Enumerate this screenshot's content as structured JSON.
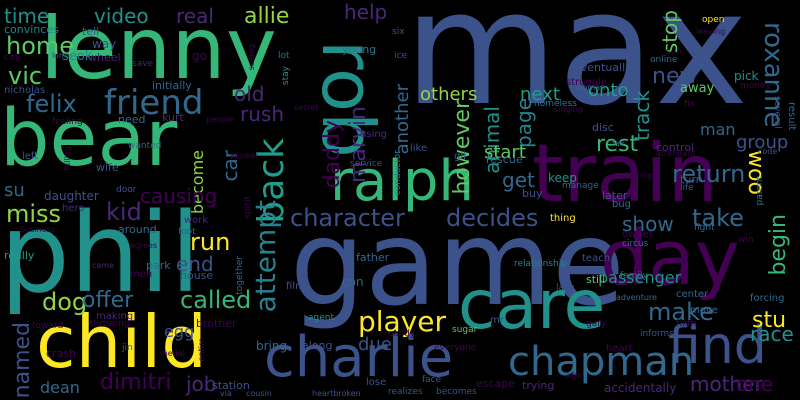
{
  "words": {
    "max": "max",
    "game": "game",
    "phil": "phil",
    "lenny": "lenny",
    "bear": "bear",
    "train": "train",
    "rob": "rob",
    "care": "care",
    "child": "child",
    "day": "day",
    "ralph": "ralph",
    "charlie": "charlie",
    "find": "find",
    "chapman": "chapman",
    "friend": "friend",
    "back": "back",
    "attempt": "attempt",
    "character": "character",
    "decides": "decides",
    "player": "player",
    "roxanne": "roxanne",
    "home": "home",
    "vic": "vic",
    "felix": "felix",
    "miss": "miss",
    "kid": "kid",
    "run": "run",
    "called": "called",
    "make": "make",
    "dog": "dog",
    "offer": "offer",
    "named": "named",
    "dimitri": "dimitri",
    "job": "job",
    "mother": "mother",
    "stu": "stu",
    "race": "race",
    "time": "time",
    "video": "video",
    "real": "real",
    "allie": "allie",
    "help": "help",
    "others": "others",
    "next": "next",
    "onto": "onto",
    "stop": "stop",
    "track": "track",
    "page": "page",
    "return": "return",
    "new": "new",
    "woo": "woo",
    "take": "take",
    "show": "show",
    "begin": "begin",
    "rest": "rest",
    "group": "group",
    "man": "man",
    "get": "get",
    "start": "start",
    "marvin": "marvin",
    "daddy": "daddy",
    "however": "however",
    "another": "another",
    "animal": "animal",
    "rush": "rush",
    "old": "old",
    "car": "car",
    "become": "become",
    "causing": "causing",
    "end": "end",
    "park": "park",
    "one": "one",
    "su": "su",
    "due": "due",
    "along": "along",
    "bring": "bring",
    "passenger": "passenger",
    "convinces": "convinces",
    "tell": "tell",
    "way": "way",
    "seok": "seok",
    "wheel": "wheel",
    "nicholas": "nicholas",
    "save": "save",
    "initially": "initially",
    "kurt": "kurt",
    "need": "need",
    "go": "go",
    "lot": "lot",
    "seeing": "seeing",
    "stay": "stay",
    "young": "young",
    "six": "six",
    "ice": "ice",
    "eventually": "eventually",
    "struggle": "struggle",
    "open": "open",
    "woman": "woman",
    "pick": "pick",
    "away": "away",
    "money": "money",
    "result": "result",
    "several": "several",
    "fix": "fix",
    "control": "control",
    "code": "code",
    "wife": "wife",
    "left": "left",
    "feeling": "feeling",
    "falling": "falling",
    "wanted": "wanted",
    "appear": "appear",
    "spirit": "spirit",
    "door": "door",
    "daughter": "daughter",
    "hero": "hero",
    "work": "work",
    "foot": "foot",
    "around": "around",
    "agrees": "agrees",
    "together": "together",
    "business": "business",
    "really": "really",
    "came": "came",
    "men": "men",
    "house": "house",
    "film": "film",
    "con": "con",
    "father": "father",
    "agent": "agent",
    "egg": "egg",
    "brother": "brother",
    "entire": "entire",
    "toward": "toward",
    "crash": "crash",
    "throwing": "throwing",
    "making": "making",
    "jin": "jin",
    "dean": "dean",
    "medal": "medal",
    "station": "station",
    "via": "via",
    "cousin": "cousin",
    "lose": "lose",
    "heartbroken": "heartbroken",
    "realizes": "realizes",
    "becomes": "becomes",
    "escape": "escape",
    "trying": "trying",
    "accidentally": "accidentally",
    "mr": "mr",
    "candy": "candy",
    "sugar": "sugar",
    "everyone": "everyone",
    "heart": "heart",
    "gary": "gary",
    "faith": "faith",
    "informs": "informs",
    "move": "move",
    "center": "center",
    "adventure": "adventure",
    "forcing": "forcing",
    "lake": "lake",
    "family": "family",
    "still": "still",
    "teach": "teach",
    "circus": "circus",
    "owner": "owner",
    "win": "win",
    "fight": "fight",
    "parent": "parent",
    "bug": "bug",
    "later": "later",
    "buy": "buy",
    "keep": "keep",
    "manage": "manage",
    "thing": "thing",
    "rescue": "rescue",
    "fearing": "fearing",
    "turn": "turn",
    "life": "life",
    "fall": "fall",
    "disc": "disc",
    "attendant": "attendant",
    "homeless": "homeless",
    "singing": "singing",
    "online": "online",
    "son": "son",
    "leaving": "leaving",
    "using": "using",
    "like": "like",
    "service": "service",
    "conductor": "conductor",
    "gil": "gil",
    "secret": "secret",
    "face": "face",
    "relationship": "relationship",
    "city": "city",
    "kim": "kim",
    "people": "people",
    "ago": "ago"
  },
  "palette": {
    "indigo": "#3b528b",
    "purple": "#440154",
    "teal": "#21918c",
    "green": "#5ec962",
    "yellow": "#fde725",
    "steel": "#31688e",
    "greenteal": "#35b779",
    "darkteal": "#26828e",
    "violet": "#482878",
    "blueteal": "#2c728e",
    "lime": "#90d743",
    "aqua": "#1f9e89"
  }
}
